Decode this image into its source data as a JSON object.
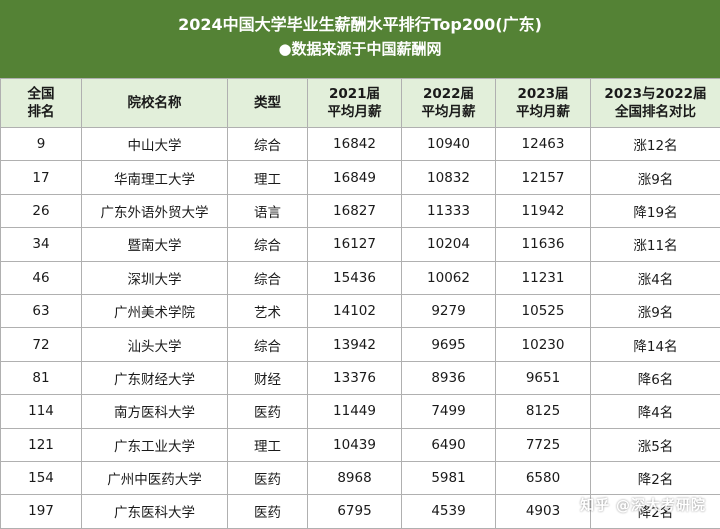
{
  "header": {
    "title": "2024中国大学毕业生薪酬水平排行Top200(广东)",
    "subtitle": "●数据来源于中国薪酬网"
  },
  "table": {
    "columns": [
      [
        "全国",
        "排名"
      ],
      [
        "院校名称"
      ],
      [
        "类型"
      ],
      [
        "2021届",
        "平均月薪"
      ],
      [
        "2022届",
        "平均月薪"
      ],
      [
        "2023届",
        "平均月薪"
      ],
      [
        "2023与2022届",
        "全国排名对比"
      ]
    ],
    "rows": [
      [
        "9",
        "中山大学",
        "综合",
        "16842",
        "10940",
        "12463",
        "涨12名"
      ],
      [
        "17",
        "华南理工大学",
        "理工",
        "16849",
        "10832",
        "12157",
        "涨9名"
      ],
      [
        "26",
        "广东外语外贸大学",
        "语言",
        "16827",
        "11333",
        "11942",
        "降19名"
      ],
      [
        "34",
        "暨南大学",
        "综合",
        "16127",
        "10204",
        "11636",
        "涨11名"
      ],
      [
        "46",
        "深圳大学",
        "综合",
        "15436",
        "10062",
        "11231",
        "涨4名"
      ],
      [
        "63",
        "广州美术学院",
        "艺术",
        "14102",
        "9279",
        "10525",
        "涨9名"
      ],
      [
        "72",
        "汕头大学",
        "综合",
        "13942",
        "9695",
        "10230",
        "降14名"
      ],
      [
        "81",
        "广东财经大学",
        "财经",
        "13376",
        "8936",
        "9651",
        "降6名"
      ],
      [
        "114",
        "南方医科大学",
        "医药",
        "11449",
        "7499",
        "8125",
        "降4名"
      ],
      [
        "121",
        "广东工业大学",
        "理工",
        "10439",
        "6490",
        "7725",
        "涨5名"
      ],
      [
        "154",
        "广州中医药大学",
        "医药",
        "8968",
        "5981",
        "6580",
        "降2名"
      ],
      [
        "197",
        "广东医科大学",
        "医药",
        "6795",
        "4539",
        "4903",
        "降2名"
      ]
    ]
  },
  "watermark": "知乎 @深大考研院",
  "colors": {
    "banner": "#548235",
    "header_row": "#e2efda",
    "border": "#b0b0b0"
  }
}
